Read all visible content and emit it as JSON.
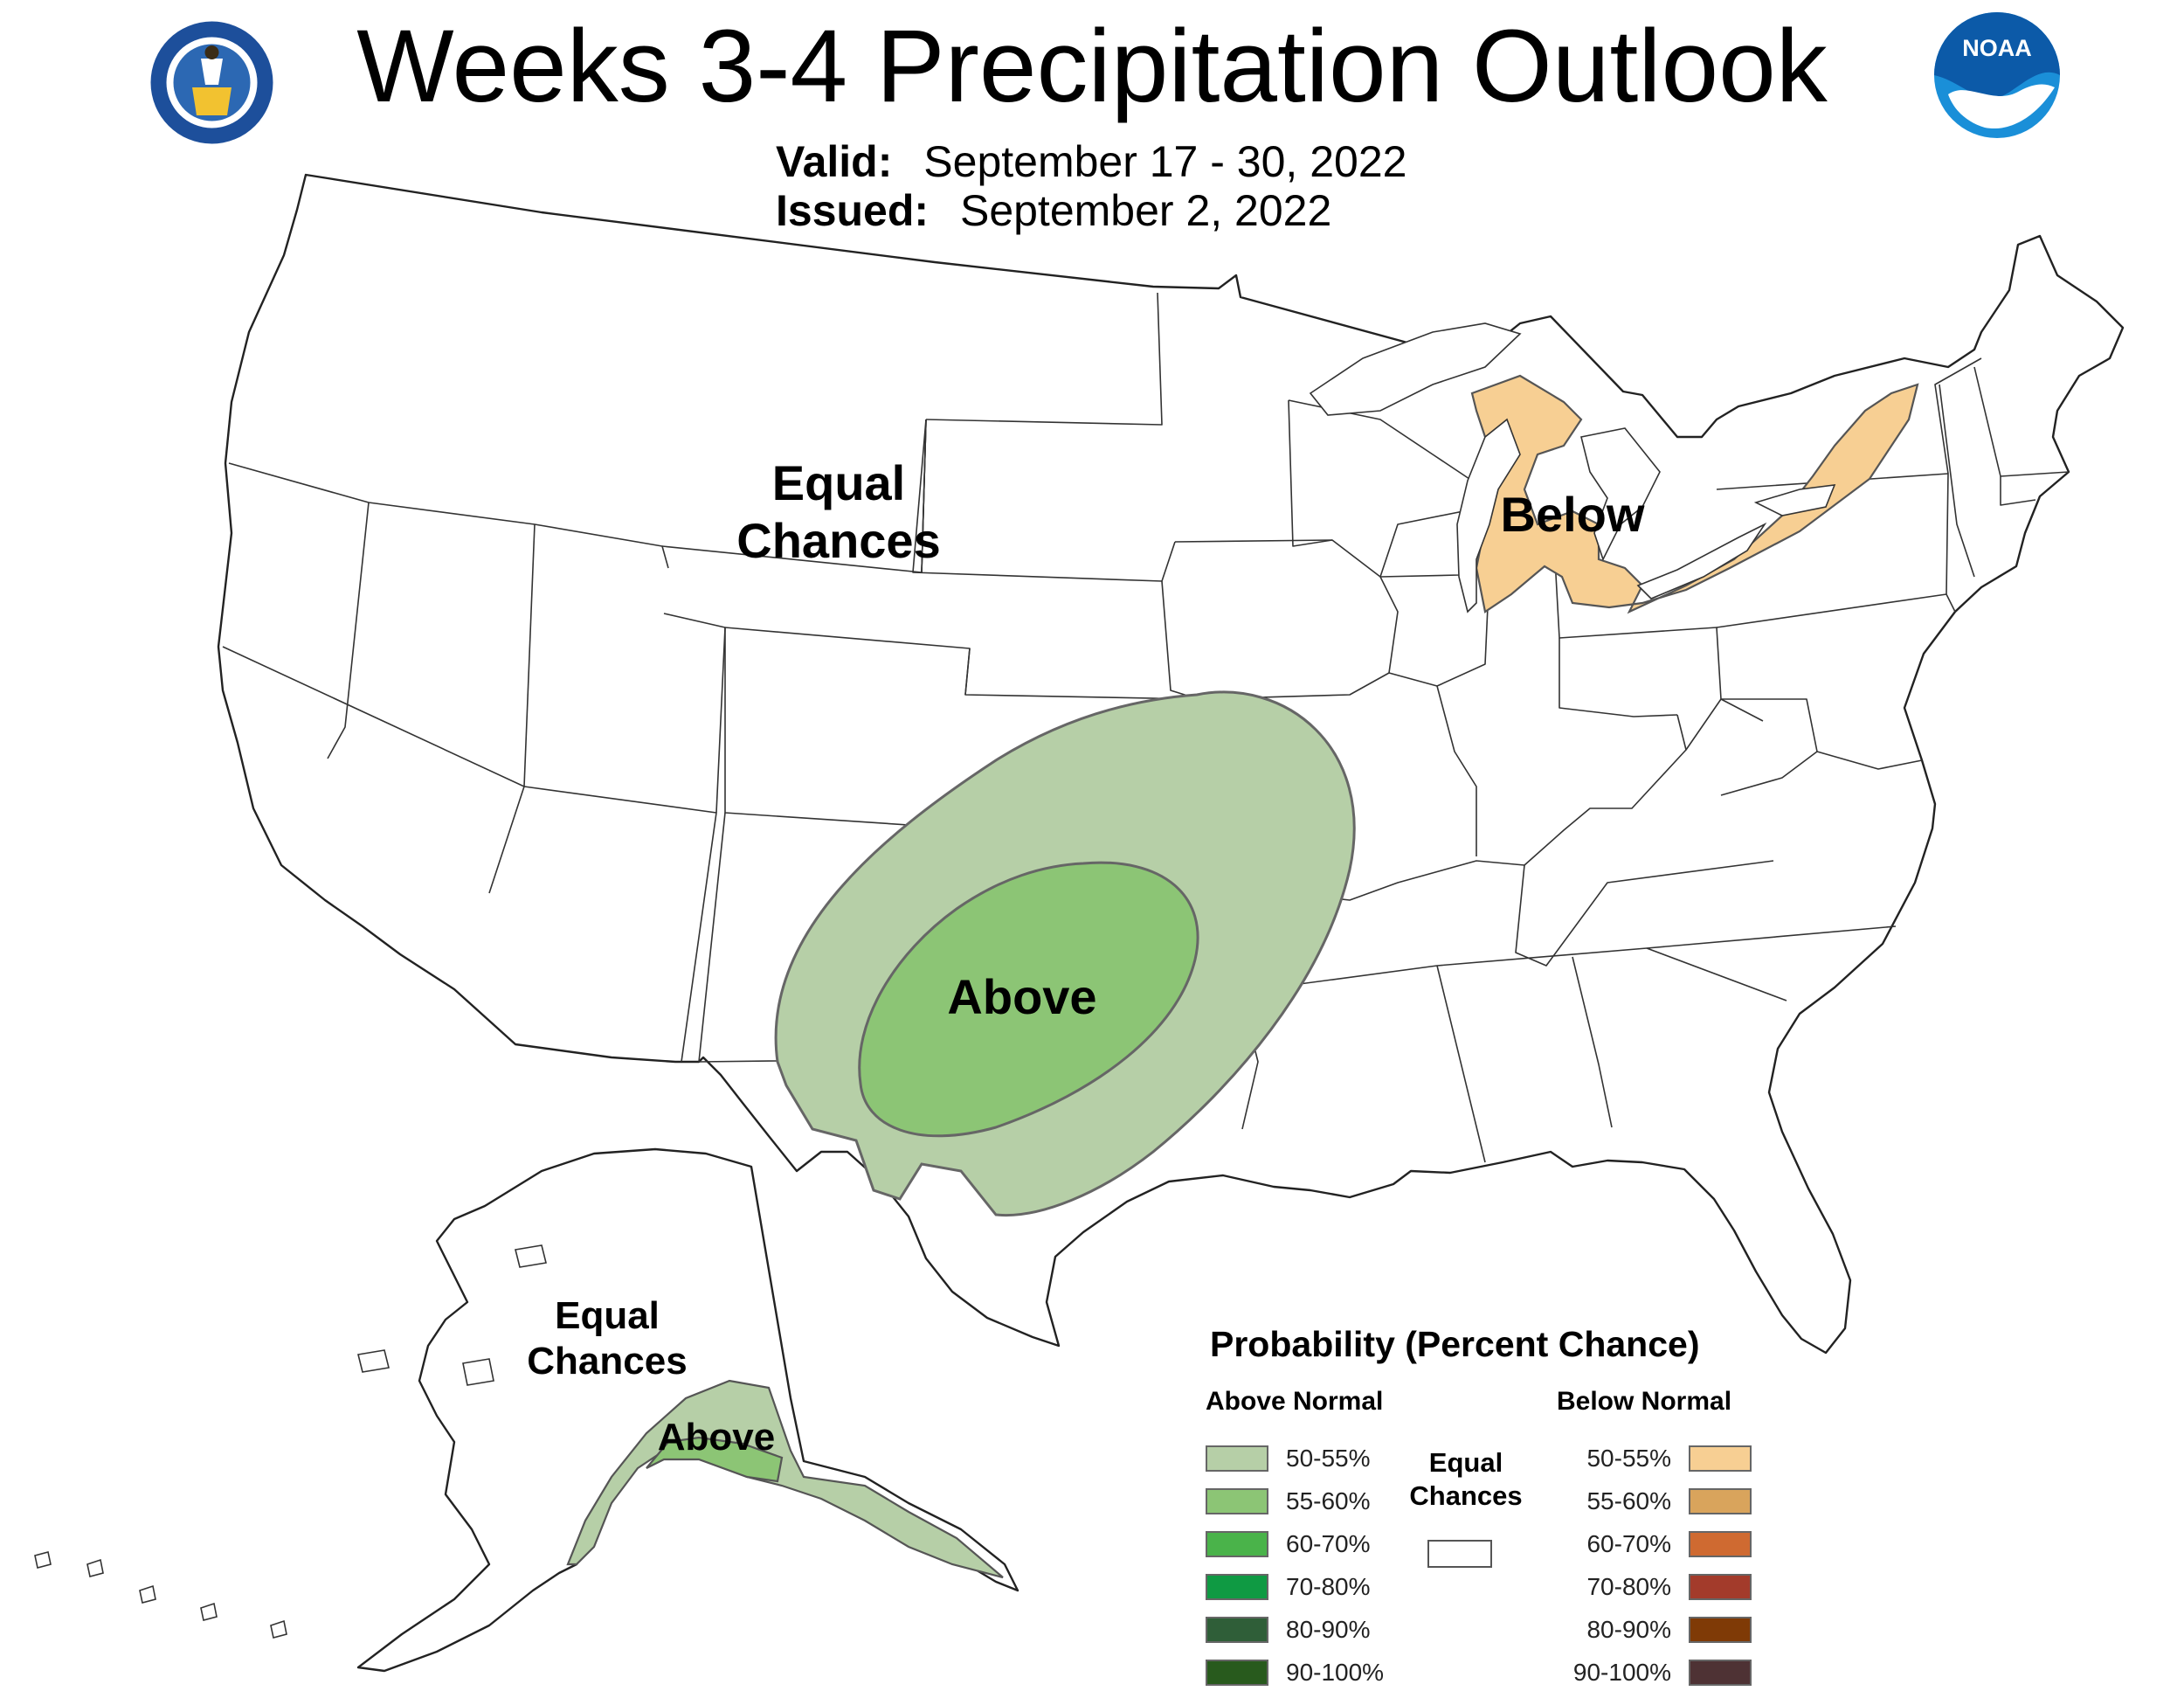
{
  "header": {
    "title": "Weeks 3-4 Precipitation Outlook",
    "valid_label": "Valid:",
    "valid_value": "September 17 - 30, 2022",
    "issued_label": "Issued:",
    "issued_value": "September 2, 2022"
  },
  "logos": {
    "left": "department-of-commerce-seal",
    "right": "noaa-logo",
    "noaa_text": "NOAA"
  },
  "map_labels": {
    "conus_equal": [
      "Equal",
      "Chances"
    ],
    "conus_above": "Above",
    "conus_below": "Below",
    "alaska_equal": [
      "Equal",
      "Chances"
    ],
    "alaska_above": "Above"
  },
  "regions": [
    {
      "name": "southern-plains-50-55",
      "category": "Above Normal",
      "probability": "50-55%",
      "color": "#b6cfa7"
    },
    {
      "name": "southern-plains-55-60",
      "category": "Above Normal",
      "probability": "55-60%",
      "color": "#8cc575"
    },
    {
      "name": "great-lakes-50-55",
      "category": "Below Normal",
      "probability": "50-55%",
      "color": "#f7cf93"
    },
    {
      "name": "southern-alaska-50-55",
      "category": "Above Normal",
      "probability": "50-55%",
      "color": "#b6cfa7"
    },
    {
      "name": "southern-alaska-55-60",
      "category": "Above Normal",
      "probability": "55-60%",
      "color": "#8cc575"
    }
  ],
  "legend": {
    "title": "Probability (Percent Chance)",
    "above_header": "Above Normal",
    "below_header": "Below Normal",
    "equal_label": [
      "Equal",
      "Chances"
    ],
    "equal_color": "#ffffff",
    "above": [
      {
        "label": "50-55%",
        "color": "#b6cfa7"
      },
      {
        "label": "55-60%",
        "color": "#8cc575"
      },
      {
        "label": "60-70%",
        "color": "#4ab34a"
      },
      {
        "label": "70-80%",
        "color": "#0f9a43"
      },
      {
        "label": "80-90%",
        "color": "#2f5e38"
      },
      {
        "label": "90-100%",
        "color": "#285a1d"
      }
    ],
    "below": [
      {
        "label": "50-55%",
        "color": "#f7cf93"
      },
      {
        "label": "55-60%",
        "color": "#d9a45c"
      },
      {
        "label": "60-70%",
        "color": "#cf6a31"
      },
      {
        "label": "70-80%",
        "color": "#a33b2b"
      },
      {
        "label": "80-90%",
        "color": "#7f3a06"
      },
      {
        "label": "90-100%",
        "color": "#4e3234"
      }
    ]
  }
}
